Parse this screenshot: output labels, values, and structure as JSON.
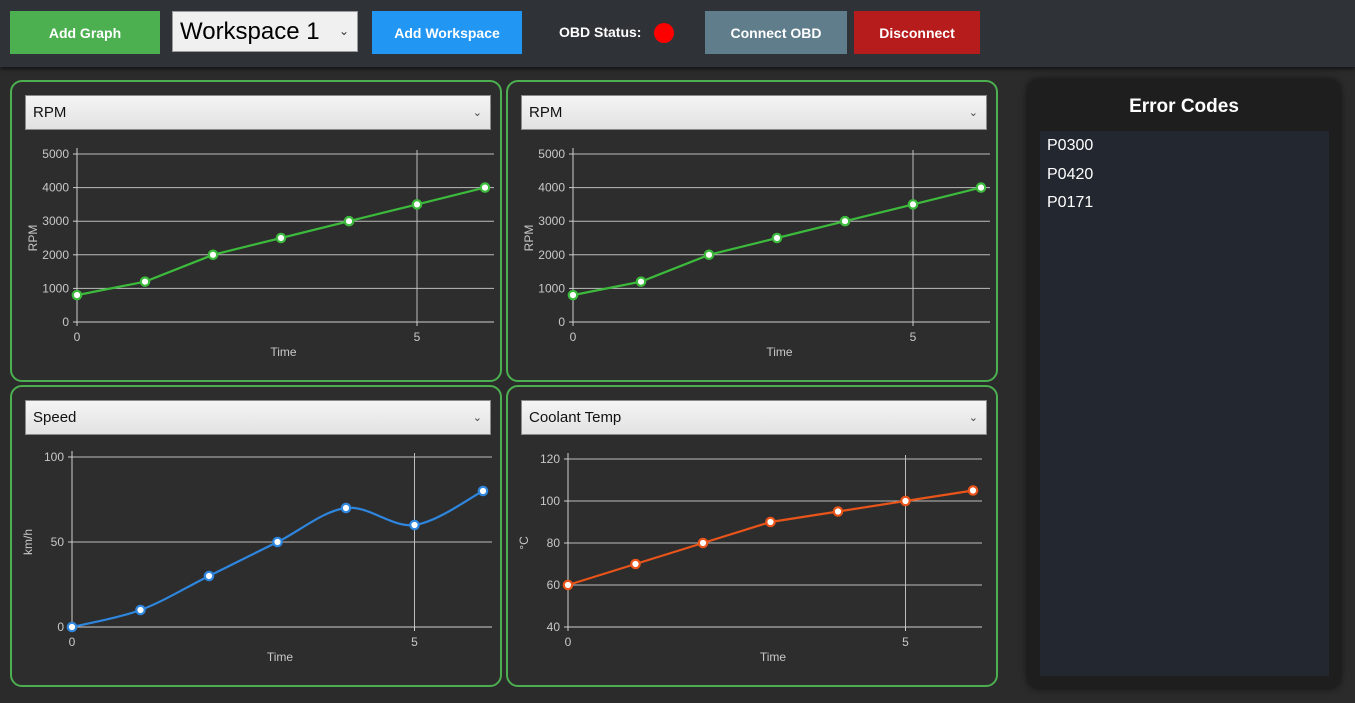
{
  "toolbar": {
    "add_graph_label": "Add Graph",
    "workspace_selected": "Workspace 1",
    "add_workspace_label": "Add Workspace",
    "obd_status_label": "OBD Status:",
    "obd_status_color": "#ff0000",
    "connect_label": "Connect OBD",
    "disconnect_label": "Disconnect"
  },
  "graphs": [
    {
      "selected_metric": "RPM",
      "chart_data": {
        "type": "line",
        "xlabel": "Time",
        "ylabel": "RPM",
        "x": [
          0,
          1,
          2,
          3,
          4,
          5,
          6
        ],
        "values": [
          800,
          1200,
          2000,
          2500,
          3000,
          3500,
          4000
        ],
        "ylim": [
          0,
          5000
        ],
        "xlim": [
          0,
          6
        ],
        "yticks": [
          0,
          1000,
          2000,
          3000,
          4000,
          5000
        ],
        "xticks": [
          0,
          5
        ],
        "color": "#3cba3c",
        "smooth": false
      }
    },
    {
      "selected_metric": "RPM",
      "chart_data": {
        "type": "line",
        "xlabel": "Time",
        "ylabel": "RPM",
        "x": [
          0,
          1,
          2,
          3,
          4,
          5,
          6
        ],
        "values": [
          800,
          1200,
          2000,
          2500,
          3000,
          3500,
          4000
        ],
        "ylim": [
          0,
          5000
        ],
        "xlim": [
          0,
          6
        ],
        "yticks": [
          0,
          1000,
          2000,
          3000,
          4000,
          5000
        ],
        "xticks": [
          0,
          5
        ],
        "color": "#3cba3c",
        "smooth": false
      }
    },
    {
      "selected_metric": "Speed",
      "chart_data": {
        "type": "line",
        "xlabel": "Time",
        "ylabel": "km/h",
        "x": [
          0,
          1,
          2,
          3,
          4,
          5,
          6
        ],
        "values": [
          0,
          10,
          30,
          50,
          70,
          60,
          80
        ],
        "ylim": [
          0,
          120
        ],
        "xlim": [
          0,
          6
        ],
        "yticks": [
          0,
          50,
          100
        ],
        "xticks": [
          0,
          5
        ],
        "color": "#2e86de",
        "smooth": true
      }
    },
    {
      "selected_metric": "Coolant Temp",
      "chart_data": {
        "type": "line",
        "xlabel": "Time",
        "ylabel": "°C",
        "x": [
          0,
          1,
          2,
          3,
          4,
          5,
          6
        ],
        "values": [
          60,
          70,
          80,
          90,
          95,
          100,
          105
        ],
        "ylim": [
          40,
          120
        ],
        "xlim": [
          0,
          6
        ],
        "yticks": [
          40,
          60,
          80,
          100,
          120
        ],
        "xticks": [
          0,
          5
        ],
        "color": "#e8541a",
        "smooth": false
      }
    }
  ],
  "error_codes": {
    "title": "Error Codes",
    "items": [
      "P0300",
      "P0420",
      "P0171"
    ]
  }
}
